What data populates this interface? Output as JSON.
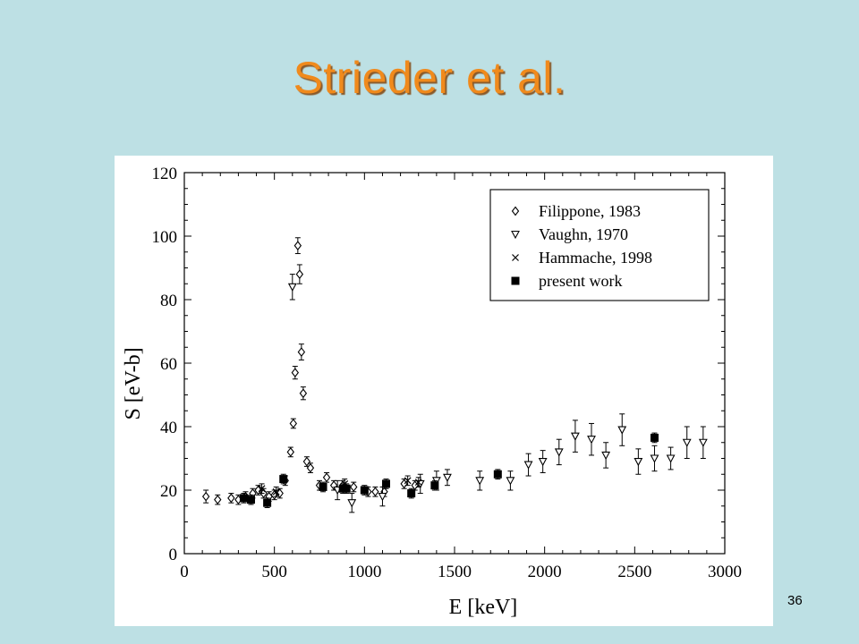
{
  "slide": {
    "title": "Strieder et al.",
    "page_number": "36"
  },
  "colors": {
    "background": "#bde0e4",
    "title": "#f08a1c",
    "figure_background": "#ffffff",
    "marks": "#000000"
  },
  "chart_data": {
    "type": "scatter",
    "title": "",
    "xlabel": "E [keV]",
    "ylabel": "S [eV-b]",
    "xlim": [
      0,
      3000
    ],
    "ylim": [
      0,
      120
    ],
    "xticks": [
      "0",
      "500",
      "1000",
      "1500",
      "2000",
      "2500",
      "3000"
    ],
    "yticks": [
      "0",
      "20",
      "40",
      "60",
      "80",
      "100",
      "120"
    ],
    "grid": false,
    "legend_position": "top-right",
    "series": [
      {
        "name": "Filippone, 1983",
        "marker": "diamond",
        "points": [
          {
            "x": 120,
            "y": 18,
            "err": 2
          },
          {
            "x": 185,
            "y": 17,
            "err": 1.5
          },
          {
            "x": 260,
            "y": 17.5,
            "err": 1.5
          },
          {
            "x": 300,
            "y": 17,
            "err": 1.5
          },
          {
            "x": 340,
            "y": 18,
            "err": 1.5
          },
          {
            "x": 380,
            "y": 19,
            "err": 1.5
          },
          {
            "x": 410,
            "y": 20,
            "err": 1.5
          },
          {
            "x": 440,
            "y": 19,
            "err": 1.5
          },
          {
            "x": 470,
            "y": 18,
            "err": 1.5
          },
          {
            "x": 500,
            "y": 18.5,
            "err": 1.5
          },
          {
            "x": 530,
            "y": 19,
            "err": 1.5
          },
          {
            "x": 560,
            "y": 23,
            "err": 1.5
          },
          {
            "x": 590,
            "y": 32,
            "err": 1.5
          },
          {
            "x": 605,
            "y": 41,
            "err": 1.5
          },
          {
            "x": 615,
            "y": 57,
            "err": 2
          },
          {
            "x": 630,
            "y": 97,
            "err": 2.5
          },
          {
            "x": 640,
            "y": 88,
            "err": 3
          },
          {
            "x": 650,
            "y": 63.5,
            "err": 2.5
          },
          {
            "x": 660,
            "y": 50.5,
            "err": 2
          },
          {
            "x": 680,
            "y": 29,
            "err": 1.5
          },
          {
            "x": 700,
            "y": 27,
            "err": 1.5
          },
          {
            "x": 750,
            "y": 21.5,
            "err": 1.5
          },
          {
            "x": 790,
            "y": 24,
            "err": 1.5
          },
          {
            "x": 830,
            "y": 21.5,
            "err": 1.5
          },
          {
            "x": 880,
            "y": 21.5,
            "err": 1.5
          },
          {
            "x": 940,
            "y": 21,
            "err": 1.5
          },
          {
            "x": 1020,
            "y": 19.5,
            "err": 1.5
          },
          {
            "x": 1060,
            "y": 19.5,
            "err": 1.5
          },
          {
            "x": 1110,
            "y": 19.5,
            "err": 1.5
          },
          {
            "x": 1220,
            "y": 22,
            "err": 1.5
          },
          {
            "x": 1280,
            "y": 21.5,
            "err": 1.5
          }
        ]
      },
      {
        "name": "Vaughn, 1970",
        "marker": "triangle-down",
        "points": [
          {
            "x": 600,
            "y": 84,
            "err": 4
          },
          {
            "x": 850,
            "y": 20,
            "err": 3
          },
          {
            "x": 930,
            "y": 16,
            "err": 3
          },
          {
            "x": 1100,
            "y": 18,
            "err": 3
          },
          {
            "x": 1310,
            "y": 22,
            "err": 3
          },
          {
            "x": 1400,
            "y": 23,
            "err": 3
          },
          {
            "x": 1460,
            "y": 24,
            "err": 2.5
          },
          {
            "x": 1640,
            "y": 23,
            "err": 3
          },
          {
            "x": 1810,
            "y": 23,
            "err": 3
          },
          {
            "x": 1910,
            "y": 28,
            "err": 3.5
          },
          {
            "x": 1990,
            "y": 29,
            "err": 3.5
          },
          {
            "x": 2080,
            "y": 32,
            "err": 4
          },
          {
            "x": 2170,
            "y": 37,
            "err": 5
          },
          {
            "x": 2260,
            "y": 36,
            "err": 5
          },
          {
            "x": 2340,
            "y": 31,
            "err": 4
          },
          {
            "x": 2430,
            "y": 39,
            "err": 5
          },
          {
            "x": 2520,
            "y": 29,
            "err": 4
          },
          {
            "x": 2610,
            "y": 30,
            "err": 4
          },
          {
            "x": 2700,
            "y": 30,
            "err": 3.5
          },
          {
            "x": 2790,
            "y": 35,
            "err": 5
          },
          {
            "x": 2880,
            "y": 35,
            "err": 5
          }
        ]
      },
      {
        "name": "Hammache, 1998",
        "marker": "x",
        "points": [
          {
            "x": 430,
            "y": 20.5,
            "err": 1.5
          },
          {
            "x": 510,
            "y": 19.5,
            "err": 1.5
          },
          {
            "x": 890,
            "y": 22,
            "err": 1.5
          },
          {
            "x": 1240,
            "y": 23,
            "err": 1.5
          },
          {
            "x": 1300,
            "y": 22.5,
            "err": 1.5
          }
        ]
      },
      {
        "name": "present work",
        "marker": "square-filled",
        "points": [
          {
            "x": 330,
            "y": 17.5,
            "err": 1.5
          },
          {
            "x": 370,
            "y": 17,
            "err": 1.5
          },
          {
            "x": 460,
            "y": 16,
            "err": 1.5
          },
          {
            "x": 550,
            "y": 23.5,
            "err": 1.5
          },
          {
            "x": 770,
            "y": 21,
            "err": 1.5
          },
          {
            "x": 880,
            "y": 20.5,
            "err": 1.5
          },
          {
            "x": 900,
            "y": 20.5,
            "err": 1.5
          },
          {
            "x": 1000,
            "y": 20,
            "err": 1.5
          },
          {
            "x": 1120,
            "y": 22,
            "err": 1.5
          },
          {
            "x": 1260,
            "y": 19,
            "err": 1.5
          },
          {
            "x": 1390,
            "y": 21.5,
            "err": 1.5
          },
          {
            "x": 1740,
            "y": 25,
            "err": 1.5
          },
          {
            "x": 2610,
            "y": 36.5,
            "err": 1.5
          }
        ]
      }
    ]
  }
}
